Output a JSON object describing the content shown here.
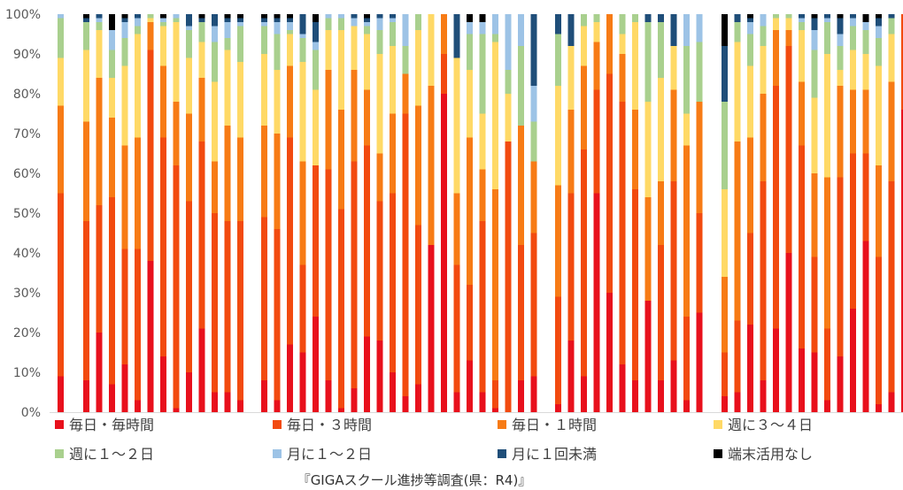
{
  "chart_data": {
    "type": "bar",
    "stacked": true,
    "percent_stacked": true,
    "caption": "『GIGAスクール進捗等調査(県：R4)』",
    "ylim": [
      0,
      100
    ],
    "y_ticks": [
      "0%",
      "10%",
      "20%",
      "30%",
      "40%",
      "50%",
      "60%",
      "70%",
      "80%",
      "90%",
      "100%"
    ],
    "grid": false,
    "legend_position": "bottom",
    "series": [
      {
        "name": "毎日・毎時間",
        "color": "#e8101c"
      },
      {
        "name": "毎日・３時間",
        "color": "#f24a0f"
      },
      {
        "name": "毎日・１時間",
        "color": "#f77b15"
      },
      {
        "name": "週に３〜４日",
        "color": "#ffd966"
      },
      {
        "name": "週に１〜２日",
        "color": "#a9d08e"
      },
      {
        "name": "月に１〜２日",
        "color": "#9dc3e6"
      },
      {
        "name": "月に１回未満",
        "color": "#1f4e79"
      },
      {
        "name": "端末活用なし",
        "color": "#000000"
      }
    ],
    "groups": [
      {
        "bars": [
          [
            9,
            46,
            22,
            12,
            10,
            1,
            0,
            0
          ],
          [
            0,
            0,
            0,
            0,
            0,
            0,
            0,
            0
          ],
          [
            8,
            40,
            25,
            18,
            7,
            0,
            1,
            1
          ],
          [
            20,
            32,
            32,
            12,
            2,
            1,
            1,
            0
          ],
          [
            7,
            47,
            20,
            10,
            7,
            5,
            0,
            4
          ],
          [
            12,
            29,
            26,
            20,
            7,
            4,
            1,
            1
          ],
          [
            3,
            38,
            28,
            26,
            2,
            2,
            1,
            0
          ],
          [
            38,
            53,
            7,
            1,
            1,
            0,
            0,
            0
          ],
          [
            14,
            55,
            18,
            10,
            1,
            1,
            0,
            1
          ],
          [
            1,
            61,
            16,
            20,
            1,
            1,
            0,
            0
          ],
          [
            10,
            43,
            22,
            14,
            7,
            1,
            3,
            0
          ],
          [
            21,
            47,
            16,
            9,
            5,
            0,
            1,
            1
          ],
          [
            5,
            45,
            13,
            20,
            10,
            4,
            3,
            0
          ],
          [
            5,
            43,
            24,
            19,
            3,
            4,
            1,
            1
          ],
          [
            3,
            45,
            21,
            19,
            9,
            1,
            1,
            1
          ]
        ]
      },
      {
        "bars": [
          [
            8,
            41,
            23,
            18,
            7,
            1,
            1,
            1
          ],
          [
            3,
            43,
            24,
            16,
            9,
            3,
            1,
            1
          ],
          [
            17,
            52,
            18,
            8,
            1,
            2,
            1,
            1
          ],
          [
            15,
            22,
            26,
            25,
            6,
            1,
            5,
            0
          ],
          [
            24,
            38,
            0,
            19,
            10,
            2,
            5,
            2
          ],
          [
            8,
            53,
            25,
            10,
            3,
            1,
            0,
            0
          ],
          [
            1,
            50,
            25,
            20,
            3,
            1,
            0,
            0
          ],
          [
            6,
            57,
            23,
            11,
            0,
            2,
            1,
            0
          ],
          [
            19,
            48,
            14,
            14,
            2,
            1,
            1,
            1
          ],
          [
            18,
            35,
            12,
            25,
            6,
            3,
            1,
            0
          ],
          [
            10,
            45,
            20,
            17,
            6,
            1,
            1,
            0
          ],
          [
            4,
            71,
            10,
            0,
            7,
            8,
            0,
            0
          ],
          [
            7,
            40,
            30,
            19,
            4,
            0,
            0,
            0
          ],
          [
            42,
            0,
            40,
            18,
            0,
            0,
            0,
            0
          ],
          [
            80,
            10,
            10,
            0,
            0,
            0,
            0,
            0
          ],
          [
            5,
            32,
            18,
            34,
            0,
            0,
            11,
            0
          ],
          [
            13,
            19,
            37,
            17,
            9,
            3,
            0,
            2
          ],
          [
            5,
            43,
            13,
            14,
            20,
            3,
            0,
            2
          ],
          [
            1,
            7,
            48,
            37,
            2,
            5,
            0,
            0
          ],
          [
            0,
            68,
            0,
            12,
            6,
            14,
            0,
            0
          ],
          [
            8,
            34,
            30,
            0,
            20,
            8,
            0,
            0
          ],
          [
            9,
            36,
            18,
            0,
            10,
            9,
            18,
            0
          ]
        ]
      },
      {
        "bars": [
          [
            2,
            27,
            28,
            25,
            13,
            0,
            5,
            0
          ],
          [
            18,
            37,
            21,
            16,
            0,
            0,
            8,
            0
          ],
          [
            9,
            57,
            21,
            10,
            3,
            0,
            0,
            0
          ],
          [
            55,
            26,
            12,
            5,
            2,
            0,
            0,
            0
          ],
          [
            30,
            55,
            15,
            0,
            0,
            0,
            0,
            0
          ],
          [
            12,
            66,
            12,
            5,
            5,
            0,
            0,
            0
          ],
          [
            8,
            48,
            20,
            22,
            2,
            0,
            0,
            0
          ],
          [
            28,
            0,
            26,
            24,
            20,
            0,
            2,
            0
          ],
          [
            8,
            34,
            16,
            26,
            14,
            0,
            2,
            0
          ],
          [
            13,
            45,
            23,
            11,
            0,
            0,
            8,
            0
          ],
          [
            3,
            21,
            43,
            8,
            17,
            8,
            0,
            0
          ],
          [
            25,
            25,
            28,
            0,
            15,
            7,
            0,
            0
          ]
        ]
      },
      {
        "bars": [
          [
            4,
            11,
            19,
            22,
            22,
            0,
            14,
            8
          ],
          [
            5,
            18,
            45,
            25,
            5,
            0,
            2,
            0
          ],
          [
            22,
            23,
            24,
            18,
            8,
            3,
            1,
            1
          ],
          [
            8,
            50,
            22,
            12,
            5,
            3,
            0,
            0
          ],
          [
            21,
            61,
            14,
            3,
            1,
            0,
            0,
            0
          ],
          [
            40,
            52,
            4,
            3,
            1,
            0,
            0,
            0
          ],
          [
            16,
            51,
            16,
            13,
            2,
            1,
            1,
            0
          ],
          [
            15,
            24,
            21,
            19,
            12,
            5,
            3,
            1
          ],
          [
            3,
            18,
            38,
            31,
            8,
            1,
            1,
            0
          ],
          [
            14,
            45,
            23,
            4,
            6,
            3,
            4,
            1
          ],
          [
            26,
            39,
            16,
            10,
            6,
            2,
            1,
            0
          ],
          [
            43,
            22,
            16,
            9,
            6,
            2,
            0,
            2
          ],
          [
            2,
            37,
            23,
            25,
            7,
            3,
            2,
            1
          ],
          [
            5,
            53,
            25,
            12,
            4,
            0,
            1,
            0
          ],
          [
            76,
            24,
            0,
            0,
            0,
            0,
            0,
            0
          ]
        ]
      }
    ]
  }
}
